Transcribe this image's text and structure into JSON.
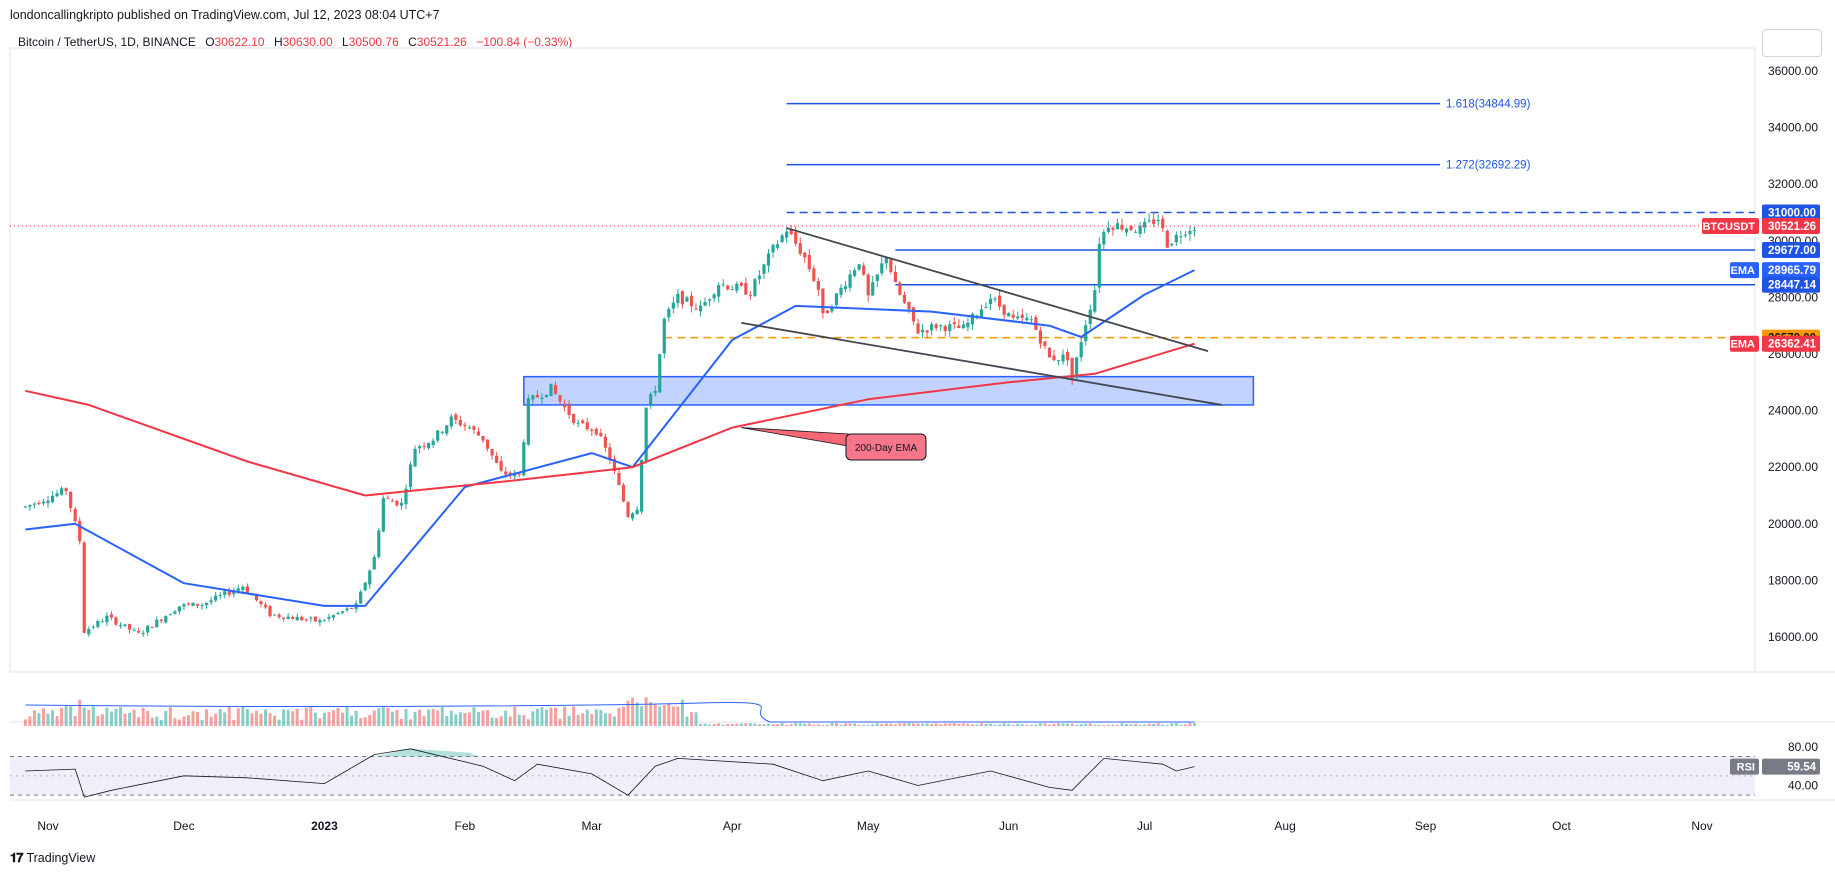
{
  "header": {
    "published": "londoncallingkripto published on TradingView.com, Jul 12, 2023 08:04 UTC+7"
  },
  "legend": {
    "symbol": "Bitcoin / TetherUS, 1D, BINANCE",
    "o_label": "O",
    "o": "30622.10",
    "h_label": "H",
    "h": "30630.00",
    "l_label": "L",
    "l": "30500.76",
    "c_label": "C",
    "c": "30521.26",
    "change": "−100.84 (−0.33%)"
  },
  "footer": {
    "brand": "TradingView",
    "logo_icon": "tradingview-logo-icon"
  },
  "colors": {
    "up": "#26a69a",
    "down": "#ef5350",
    "ema50": "#2962ff",
    "ema200": "#f23645",
    "level": "#1e53e5",
    "orange": "#ff9800",
    "zone": "#2962ff",
    "rsi": "#7e57c2"
  },
  "chart_data": {
    "type": "line",
    "subtype": "candlestick",
    "title": "",
    "ylim": [
      15000,
      37000
    ],
    "y_ticks": [
      "36000.00",
      "34000.00",
      "32000.00",
      "30000.00",
      "28000.00",
      "26000.00",
      "24000.00",
      "22000.00",
      "20000.00",
      "18000.00",
      "16000.00"
    ],
    "x_ticks": [
      "Nov",
      "Dec",
      "2023",
      "Feb",
      "Mar",
      "Apr",
      "May",
      "Jun",
      "Jul",
      "Aug",
      "Sep",
      "Oct",
      "Nov"
    ],
    "price_path": [
      [
        "2022-10-27",
        20600
      ],
      [
        "2022-11-05",
        21200
      ],
      [
        "2022-11-08",
        19400
      ],
      [
        "2022-11-09",
        16200
      ],
      [
        "2022-11-14",
        16700
      ],
      [
        "2022-11-21",
        16100
      ],
      [
        "2022-11-30",
        17100
      ],
      [
        "2022-12-05",
        17150
      ],
      [
        "2022-12-14",
        17800
      ],
      [
        "2022-12-20",
        16800
      ],
      [
        "2022-12-31",
        16550
      ],
      [
        "2023-01-08",
        17100
      ],
      [
        "2023-01-12",
        18800
      ],
      [
        "2023-01-14",
        20900
      ],
      [
        "2023-01-18",
        20700
      ],
      [
        "2023-01-21",
        22700
      ],
      [
        "2023-01-25",
        23000
      ],
      [
        "2023-01-29",
        23700
      ],
      [
        "2023-02-02",
        23400
      ],
      [
        "2023-02-05",
        23000
      ],
      [
        "2023-02-09",
        21800
      ],
      [
        "2023-02-13",
        21700
      ],
      [
        "2023-02-15",
        24300
      ],
      [
        "2023-02-20",
        24800
      ],
      [
        "2023-02-23",
        24100
      ],
      [
        "2023-02-26",
        23500
      ],
      [
        "2023-03-02",
        23300
      ],
      [
        "2023-03-05",
        22300
      ],
      [
        "2023-03-09",
        20300
      ],
      [
        "2023-03-11",
        20600
      ],
      [
        "2023-03-13",
        24100
      ],
      [
        "2023-03-15",
        24800
      ],
      [
        "2023-03-17",
        27200
      ],
      [
        "2023-03-20",
        28000
      ],
      [
        "2023-03-25",
        27600
      ],
      [
        "2023-03-29",
        28500
      ],
      [
        "2023-04-05",
        28200
      ],
      [
        "2023-04-10",
        29700
      ],
      [
        "2023-04-13",
        30400
      ],
      [
        "2023-04-17",
        29400
      ],
      [
        "2023-04-20",
        28300
      ],
      [
        "2023-04-21",
        27300
      ],
      [
        "2023-04-25",
        28300
      ],
      [
        "2023-04-29",
        29300
      ],
      [
        "2023-05-01",
        28000
      ],
      [
        "2023-05-05",
        29500
      ],
      [
        "2023-05-07",
        28400
      ],
      [
        "2023-05-12",
        26800
      ],
      [
        "2023-05-16",
        27000
      ],
      [
        "2023-05-22",
        26900
      ],
      [
        "2023-05-28",
        28000
      ],
      [
        "2023-05-30",
        27700
      ],
      [
        "2023-06-02",
        27200
      ],
      [
        "2023-06-06",
        27200
      ],
      [
        "2023-06-10",
        25850
      ],
      [
        "2023-06-14",
        25900
      ],
      [
        "2023-06-15",
        25100
      ],
      [
        "2023-06-17",
        26500
      ],
      [
        "2023-06-20",
        28300
      ],
      [
        "2023-06-21",
        30000
      ],
      [
        "2023-06-23",
        30600
      ],
      [
        "2023-06-30",
        30400
      ],
      [
        "2023-07-04",
        30800
      ],
      [
        "2023-07-06",
        29900
      ],
      [
        "2023-07-10",
        30400
      ],
      [
        "2023-07-12",
        30521.26
      ]
    ],
    "series": [
      {
        "name": "EMA",
        "last": "28965.79",
        "points": [
          [
            "2022-10-27",
            19800
          ],
          [
            "2022-11-07",
            20000
          ],
          [
            "2022-12-01",
            17900
          ],
          [
            "2023-01-01",
            17100
          ],
          [
            "2023-01-10",
            17100
          ],
          [
            "2023-02-01",
            21300
          ],
          [
            "2023-03-01",
            22500
          ],
          [
            "2023-03-10",
            22000
          ],
          [
            "2023-04-01",
            26500
          ],
          [
            "2023-04-15",
            27700
          ],
          [
            "2023-05-15",
            27500
          ],
          [
            "2023-06-10",
            27000
          ],
          [
            "2023-06-17",
            26600
          ],
          [
            "2023-07-01",
            28100
          ],
          [
            "2023-07-12",
            28965.79
          ]
        ]
      },
      {
        "name": "EMA",
        "last": "26362.41",
        "points": [
          [
            "2022-10-27",
            24700
          ],
          [
            "2022-11-10",
            24200
          ],
          [
            "2022-12-15",
            22200
          ],
          [
            "2023-01-10",
            21000
          ],
          [
            "2023-02-10",
            21500
          ],
          [
            "2023-03-10",
            22000
          ],
          [
            "2023-04-01",
            23400
          ],
          [
            "2023-05-01",
            24400
          ],
          [
            "2023-06-01",
            25000
          ],
          [
            "2023-06-20",
            25300
          ],
          [
            "2023-07-12",
            26362.41
          ]
        ]
      }
    ],
    "levels": [
      {
        "label": "31000.00",
        "value": 31000
      },
      {
        "label": "29677.00",
        "value": 29677
      },
      {
        "label": "28447.14",
        "value": 28447.14
      },
      {
        "label": "26578.00",
        "value": 26578
      }
    ],
    "fib_levels": [
      {
        "label": "1.618(34844.99)",
        "value": 34844.99
      },
      {
        "label": "1.272(32692.29)",
        "value": 32692.29
      }
    ],
    "annotations": [
      {
        "text": "200-Day EMA"
      }
    ],
    "zone": {
      "from": "2023-02-14",
      "to": "2023-07-25",
      "low": 24200,
      "high": 25200
    },
    "wedge": [
      [
        [
          "2023-04-13",
          30450
        ],
        [
          "2023-07-15",
          26100
        ]
      ],
      [
        [
          "2023-04-03",
          27100
        ],
        [
          "2023-07-18",
          24200
        ]
      ]
    ],
    "price_tag": {
      "label": "BTCUSDT",
      "value": "30521.26"
    },
    "ema_tag_label": "EMA",
    "rsi": {
      "label": "RSI",
      "value": "59.54",
      "levels": [
        "80.00",
        "40.00"
      ],
      "upper": 70,
      "lower": 30,
      "ylim": [
        25,
        85
      ],
      "path": [
        [
          "2022-10-27",
          55
        ],
        [
          "2022-11-07",
          57
        ],
        [
          "2022-11-09",
          28
        ],
        [
          "2022-11-15",
          35
        ],
        [
          "2022-12-01",
          50
        ],
        [
          "2022-12-15",
          48
        ],
        [
          "2023-01-01",
          42
        ],
        [
          "2023-01-12",
          72
        ],
        [
          "2023-01-20",
          78
        ],
        [
          "2023-02-05",
          60
        ],
        [
          "2023-02-12",
          45
        ],
        [
          "2023-02-17",
          62
        ],
        [
          "2023-03-01",
          52
        ],
        [
          "2023-03-09",
          30
        ],
        [
          "2023-03-15",
          60
        ],
        [
          "2023-03-20",
          68
        ],
        [
          "2023-04-10",
          62
        ],
        [
          "2023-04-21",
          45
        ],
        [
          "2023-05-01",
          55
        ],
        [
          "2023-05-12",
          40
        ],
        [
          "2023-05-28",
          55
        ],
        [
          "2023-06-10",
          38
        ],
        [
          "2023-06-15",
          35
        ],
        [
          "2023-06-22",
          68
        ],
        [
          "2023-07-05",
          62
        ],
        [
          "2023-07-08",
          55
        ],
        [
          "2023-07-12",
          59.54
        ]
      ]
    }
  }
}
